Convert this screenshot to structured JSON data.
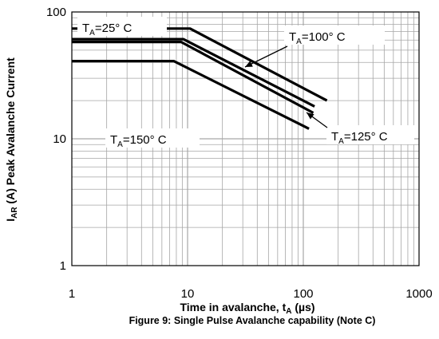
{
  "chart_data": {
    "type": "line",
    "x_scale": "log",
    "y_scale": "log",
    "xlim": [
      1,
      1000
    ],
    "ylim": [
      1,
      100
    ],
    "x_ticks": [
      "1",
      "10",
      "100",
      "1000"
    ],
    "y_ticks": [
      "1",
      "10",
      "100"
    ],
    "grid": true,
    "xlabel_main": "Time in avalanche, t",
    "xlabel_sub": "A",
    "xlabel_unit": " (µs)",
    "ylabel_main": "I",
    "ylabel_sub": "AR",
    "ylabel_rest": " (A) Peak Avalanche Current",
    "caption": "Figure 9: Single Pulse Avalanche capability (Note C)",
    "series": [
      {
        "annotation": {
          "t": "T",
          "sub": "A",
          "rest": "=25° C"
        },
        "points": [
          [
            1,
            74
          ],
          [
            10.5,
            74
          ],
          [
            160,
            20
          ]
        ]
      },
      {
        "annotation": {
          "t": "T",
          "sub": "A",
          "rest": "=100° C"
        },
        "points": [
          [
            1,
            61
          ],
          [
            9.2,
            61
          ],
          [
            125,
            18
          ]
        ]
      },
      {
        "annotation": {
          "t": "T",
          "sub": "A",
          "rest": "=125° C"
        },
        "points": [
          [
            1,
            58
          ],
          [
            8.8,
            58
          ],
          [
            122,
            16
          ]
        ]
      },
      {
        "annotation": {
          "t": "T",
          "sub": "A",
          "rest": "=150° C"
        },
        "points": [
          [
            1,
            41
          ],
          [
            7.6,
            41
          ],
          [
            112,
            12
          ]
        ]
      }
    ],
    "line_color": "#000000",
    "grid_color": "#a6a6a6"
  }
}
